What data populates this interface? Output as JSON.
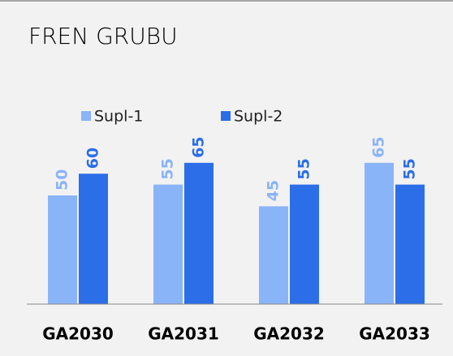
{
  "chart_data": {
    "type": "bar",
    "title": "FREN GRUBU",
    "categories": [
      "GA2030",
      "GA2031",
      "GA2032",
      "GA2033"
    ],
    "series": [
      {
        "name": "Supl-1",
        "color": "#8ab4f8",
        "values": [
          50,
          55,
          45,
          65
        ]
      },
      {
        "name": "Supl-2",
        "color": "#2b6ee8",
        "values": [
          60,
          65,
          55,
          55
        ]
      }
    ],
    "legend": "top"
  }
}
